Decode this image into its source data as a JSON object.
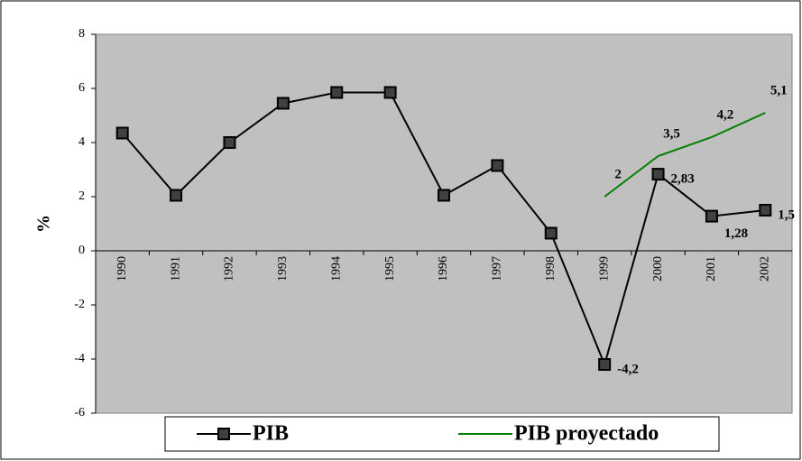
{
  "chart_data": {
    "type": "line",
    "y_label": "%",
    "categories": [
      "1990",
      "1991",
      "1992",
      "1993",
      "1994",
      "1995",
      "1996",
      "1997",
      "1998",
      "1999",
      "2000",
      "2001",
      "2002"
    ],
    "series": [
      {
        "name": "PIB",
        "color": "#000000",
        "marker": "square",
        "values": [
          4.35,
          2.05,
          4.0,
          5.45,
          5.85,
          5.85,
          2.05,
          3.15,
          0.65,
          -4.2,
          2.83,
          1.28,
          1.5
        ],
        "value_labels": [
          null,
          null,
          null,
          null,
          null,
          null,
          null,
          null,
          null,
          "-4,2",
          "2,83",
          "1,28",
          "1,5"
        ]
      },
      {
        "name": "PIB proyectado",
        "color": "#008000",
        "values": [
          null,
          null,
          null,
          null,
          null,
          null,
          null,
          null,
          null,
          2,
          3.5,
          4.2,
          5.1
        ],
        "value_labels": [
          null,
          null,
          null,
          null,
          null,
          null,
          null,
          null,
          null,
          "2",
          "3,5",
          "4,2",
          "5,1"
        ]
      }
    ],
    "ylim": [
      -6,
      8
    ],
    "yticks": [
      -6,
      -4,
      -2,
      0,
      2,
      4,
      6,
      8
    ],
    "plot_background": "#c0c0c0"
  }
}
